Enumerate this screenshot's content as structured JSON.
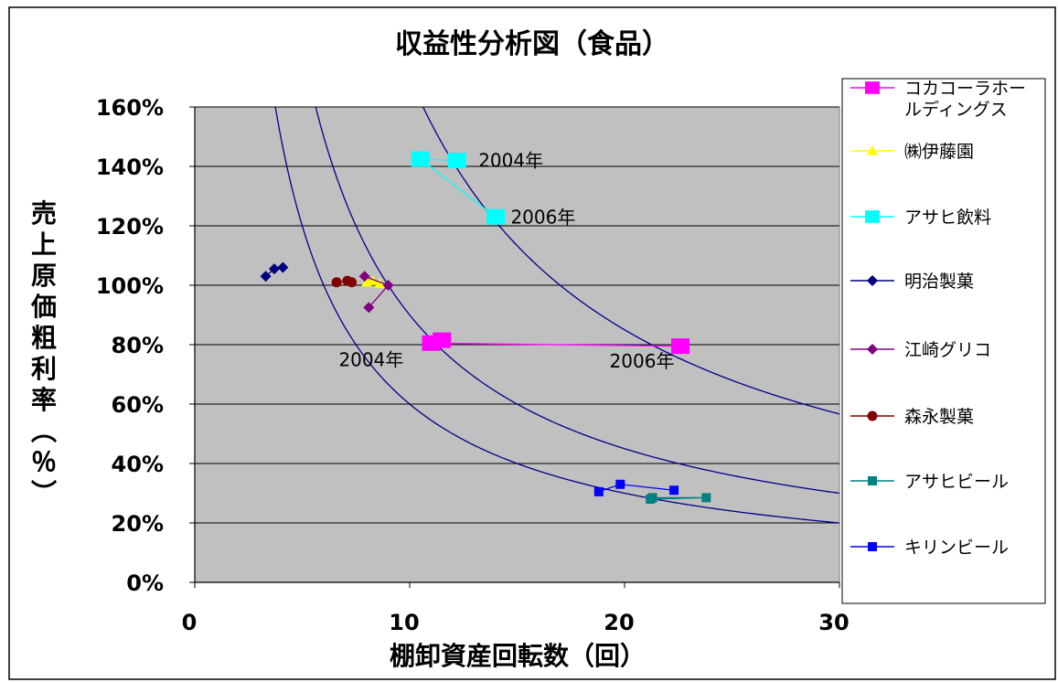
{
  "chart_data": {
    "type": "scatter",
    "title": "収益性分析図（食品）",
    "xlabel": "棚卸資産回転数（回）",
    "ylabel": "売上原価粗利率（％）",
    "xlim": [
      0,
      30
    ],
    "ylim": [
      0,
      160
    ],
    "x_ticks": [
      "0",
      "10",
      "20",
      "30"
    ],
    "y_ticks": [
      "0%",
      "20%",
      "40%",
      "60%",
      "80%",
      "100%",
      "120%",
      "140%",
      "160%"
    ],
    "grid": "horizontal",
    "plot_background": "#c0c0c0",
    "legend_position": "right",
    "series": [
      {
        "name": "コカコーラホールディングス",
        "color": "#ff00ff",
        "marker": "square-large",
        "points": [
          [
            11.5,
            81.5
          ],
          [
            11.0,
            80.5
          ],
          [
            22.6,
            79.5
          ]
        ]
      },
      {
        "name": "㈱伊藤園",
        "color": "#ffff00",
        "marker": "triangle",
        "points": [
          [
            8.3,
            101.5
          ],
          [
            8.0,
            101.0
          ],
          [
            8.6,
            100.5
          ]
        ]
      },
      {
        "name": "アサヒ飲料",
        "color": "#00ffff",
        "marker": "square-large",
        "points": [
          [
            12.2,
            142.0
          ],
          [
            10.5,
            142.5
          ],
          [
            14.0,
            123.0
          ]
        ]
      },
      {
        "name": "明治製菓",
        "color": "#000080",
        "marker": "diamond",
        "points": [
          [
            3.3,
            103.0
          ],
          [
            3.7,
            105.5
          ],
          [
            4.1,
            106.0
          ]
        ]
      },
      {
        "name": "江崎グリコ",
        "color": "#800080",
        "marker": "diamond",
        "points": [
          [
            8.1,
            92.5
          ],
          [
            9.0,
            100.0
          ],
          [
            7.9,
            103.0
          ]
        ]
      },
      {
        "name": "森永製菓",
        "color": "#800000",
        "marker": "circle",
        "points": [
          [
            6.6,
            101.0
          ],
          [
            7.1,
            101.5
          ],
          [
            7.3,
            101.0
          ]
        ]
      },
      {
        "name": "アサヒビール",
        "color": "#008080",
        "marker": "square",
        "points": [
          [
            21.3,
            28.5
          ],
          [
            23.8,
            28.5
          ],
          [
            21.2,
            28.0
          ]
        ]
      },
      {
        "name": "キリンビール",
        "color": "#0000ff",
        "marker": "square",
        "points": [
          [
            18.8,
            30.5
          ],
          [
            19.8,
            33.0
          ],
          [
            22.3,
            31.0
          ]
        ]
      }
    ],
    "reference_curves": [
      {
        "k": 600,
        "color": "#00008b"
      },
      {
        "k": 900,
        "color": "#00008b"
      },
      {
        "k": 1700,
        "color": "#00008b"
      }
    ],
    "annotations": [
      {
        "text": "2004年",
        "x": 13.2,
        "y": 142
      },
      {
        "text": "2006年",
        "x": 14.7,
        "y": 123
      },
      {
        "text": "2004年",
        "x": 6.7,
        "y": 75
      },
      {
        "text": "2006年",
        "x": 19.3,
        "y": 74.5
      }
    ]
  }
}
